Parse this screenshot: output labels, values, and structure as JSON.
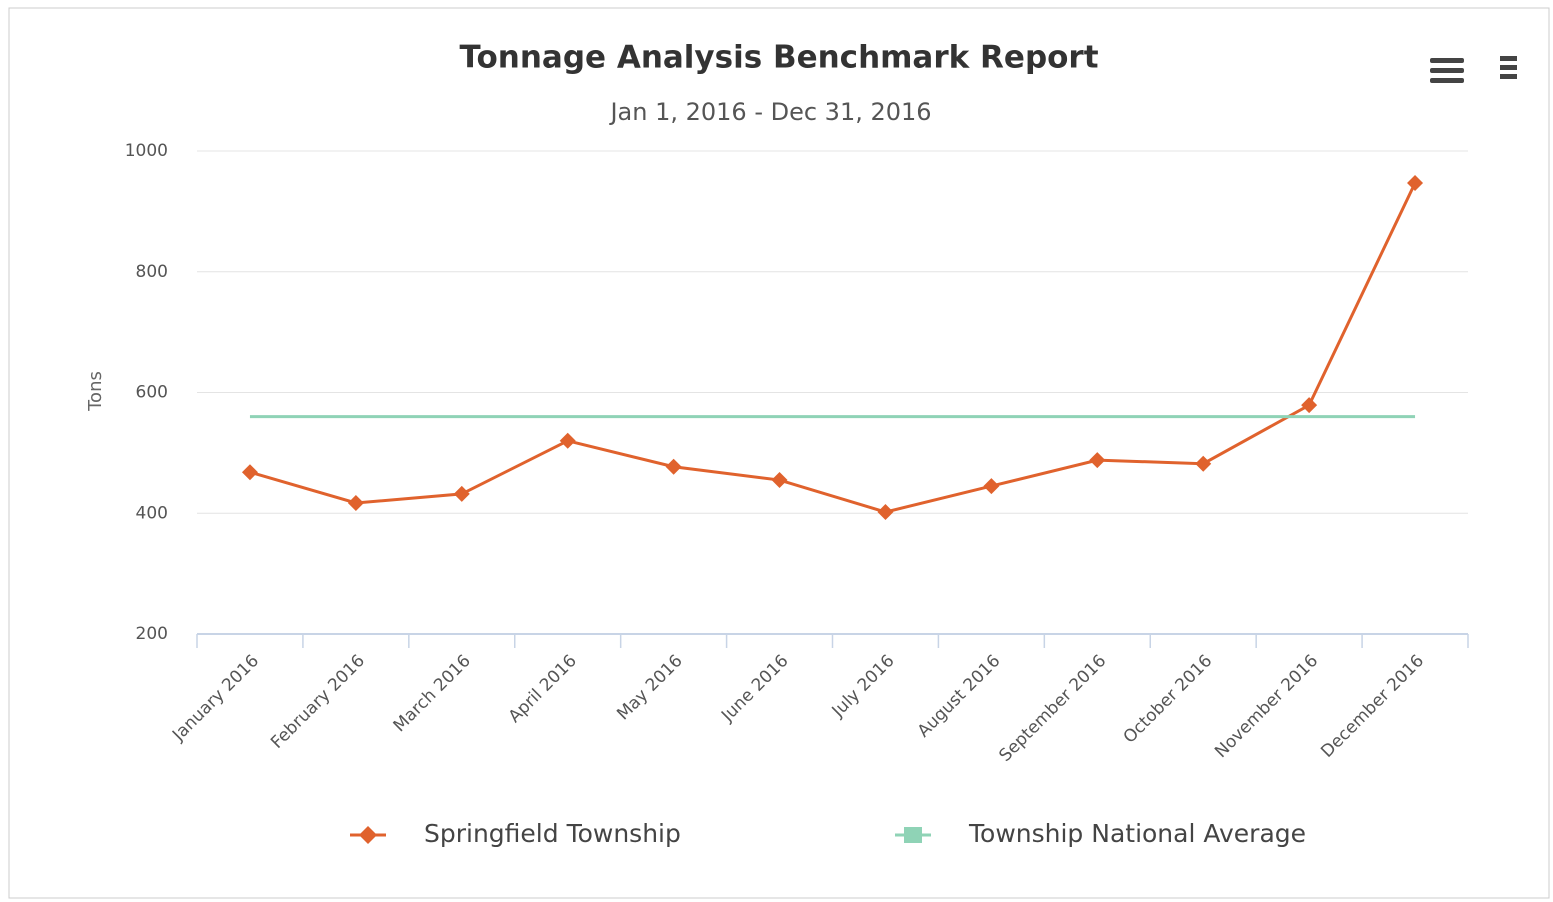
{
  "chart_data": {
    "type": "line",
    "title": "Tonnage Analysis Benchmark Report",
    "subtitle": "Jan 1, 2016 - Dec 31, 2016",
    "y_label": "Tons",
    "categories": [
      "January 2016",
      "February 2016",
      "March 2016",
      "April 2016",
      "May 2016",
      "June 2016",
      "July 2016",
      "August 2016",
      "September 2016",
      "October 2016",
      "November 2016",
      "December 2016"
    ],
    "series": [
      {
        "name": "Springfield Township",
        "color": "#e0622d",
        "values": [
          468,
          417,
          432,
          520,
          477,
          455,
          402,
          445,
          488,
          482,
          579,
          947
        ]
      },
      {
        "name": "Township National Average",
        "color": "#8fd3b6",
        "values": [
          560,
          560,
          560,
          560,
          560,
          560,
          560,
          560,
          560,
          560,
          560,
          560
        ]
      }
    ],
    "ylim": [
      200,
      1000
    ],
    "yticks": [
      200,
      400,
      600,
      800,
      1000
    ],
    "grid": true,
    "legend": "bottom"
  }
}
